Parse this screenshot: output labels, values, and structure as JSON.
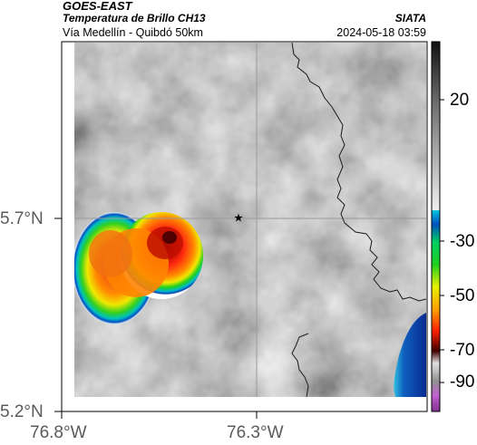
{
  "header": {
    "satellite": "GOES-EAST",
    "product": "Temperatura de Brillo CH13",
    "route": "Vía Medellín - Quibdó 50km",
    "organization": "SIATA",
    "timestamp": "2024-05-18 03:59"
  },
  "axes": {
    "lat_ticks": [
      "5.7°N",
      "5.2°N"
    ],
    "lon_ticks": [
      "76.8°W",
      "76.3°W"
    ]
  },
  "colorbar": {
    "labels": [
      "20",
      "-30",
      "-50",
      "-70",
      "-90"
    ],
    "colors": {
      "warm_gray": "#8a8a8a",
      "dark_top": "#202020",
      "cyan": "#00b8e0",
      "green": "#18d020",
      "yellow": "#f0f000",
      "orange": "#ff9000",
      "red": "#e01010",
      "dark_red": "#300000",
      "light_gray": "#d8d8d8",
      "purple": "#b040c0"
    }
  },
  "map": {
    "background_gray": "#8f8f8f",
    "marker_icon": "star-icon",
    "border_color": "#1a1a1a",
    "grid_color": "#9a9a9a"
  }
}
